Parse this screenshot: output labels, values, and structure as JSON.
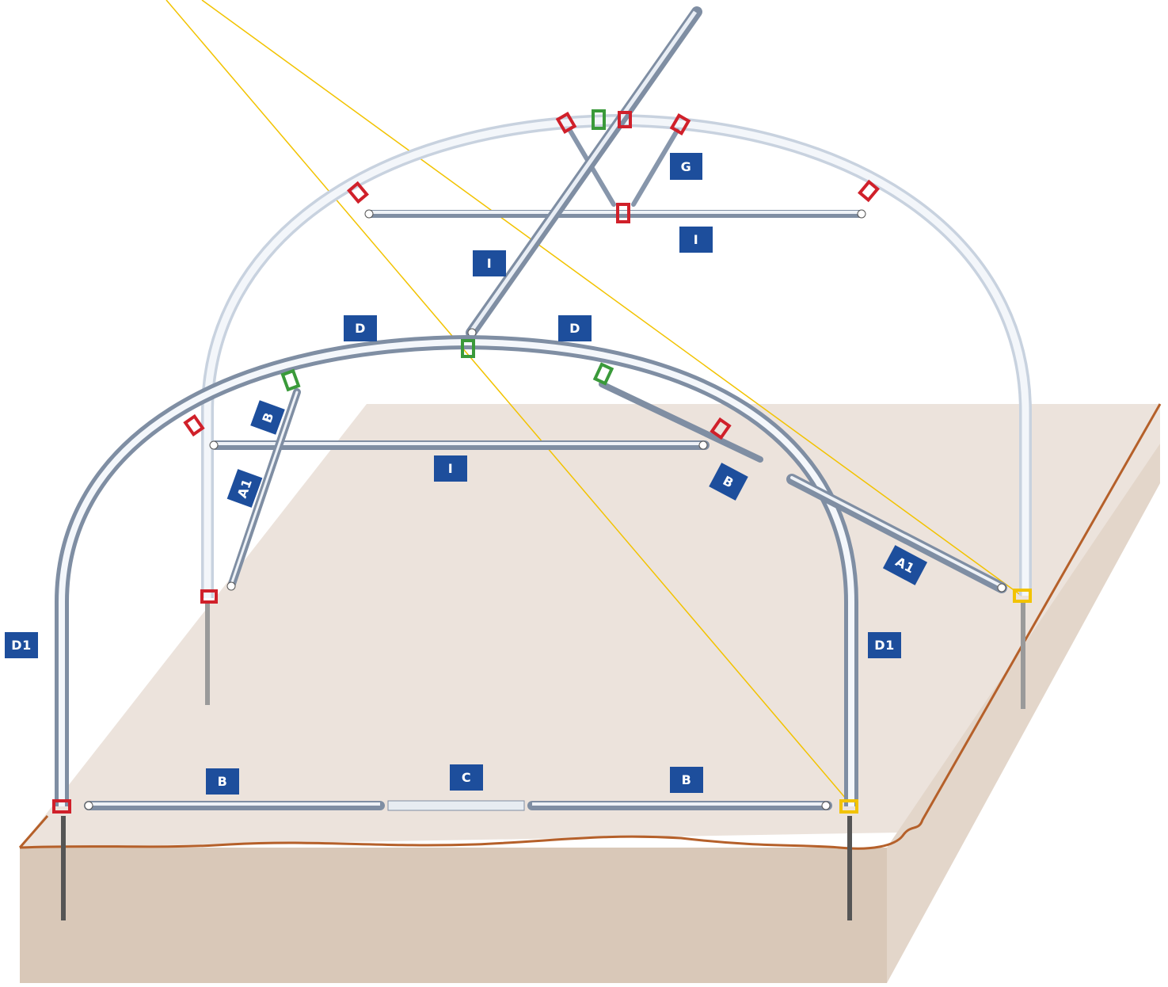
{
  "colors": {
    "label_bg": "#1d4e9c",
    "label_text": "#ffffff",
    "ground_top": "#ece3dc",
    "ground_side": "#d9c8b8",
    "ground_line": "#b5602a",
    "tube_highlight": "#f2f6fb",
    "tube_edge": "#9aa9ba",
    "guide_line": "#f2c300",
    "clip_red": "#d0202a",
    "clip_green": "#3a9a3a",
    "clip_yellow": "#f2c300",
    "anchor": "#555555"
  },
  "labels": {
    "G": "G",
    "I_top": "I",
    "I_diag": "I",
    "I_front": "I",
    "D_left": "D",
    "D_right": "D",
    "B_left_diag": "B",
    "B_right_diag": "B",
    "A1_left": "A1",
    "A1_right": "A1",
    "D1_left": "D1",
    "D1_right": "D1",
    "B_bottom_left": "B",
    "C_bottom": "C",
    "B_bottom_right": "B"
  }
}
